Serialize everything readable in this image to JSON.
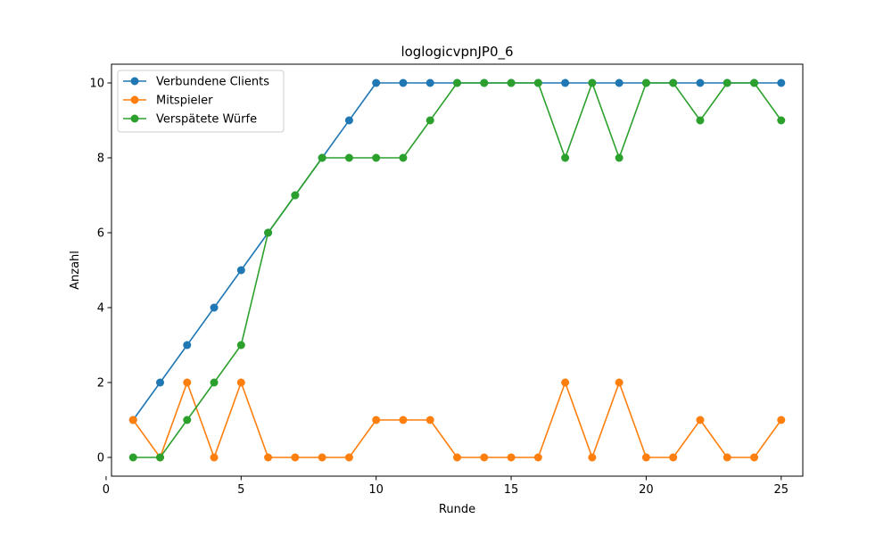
{
  "chart_data": {
    "type": "line",
    "title": "loglogicvpnJP0_6",
    "xlabel": "Runde",
    "ylabel": "Anzahl",
    "xlim": [
      0.2,
      25.8
    ],
    "ylim": [
      -0.5,
      10.5
    ],
    "xticks": [
      0,
      5,
      10,
      15,
      20,
      25
    ],
    "yticks": [
      0,
      2,
      4,
      6,
      8,
      10
    ],
    "grid": false,
    "legend_position": "top-left",
    "x": [
      1,
      2,
      3,
      4,
      5,
      6,
      7,
      8,
      9,
      10,
      11,
      12,
      13,
      14,
      15,
      16,
      17,
      18,
      19,
      20,
      21,
      22,
      23,
      24,
      25
    ],
    "series": [
      {
        "name": "Verbundene Clients",
        "color": "#1f77b4",
        "values": [
          1,
          2,
          3,
          4,
          5,
          6,
          7,
          8,
          9,
          10,
          10,
          10,
          10,
          10,
          10,
          10,
          10,
          10,
          10,
          10,
          10,
          10,
          10,
          10,
          10
        ]
      },
      {
        "name": "Mitspieler",
        "color": "#ff7f0e",
        "values": [
          1,
          0,
          2,
          0,
          2,
          0,
          0,
          0,
          0,
          1,
          1,
          1,
          0,
          0,
          0,
          0,
          2,
          0,
          2,
          0,
          0,
          1,
          0,
          0,
          1
        ]
      },
      {
        "name": "Verspätete Würfe",
        "color": "#2ca02c",
        "values": [
          0,
          0,
          1,
          2,
          3,
          6,
          7,
          8,
          8,
          8,
          8,
          9,
          10,
          10,
          10,
          10,
          8,
          10,
          8,
          10,
          10,
          9,
          10,
          10,
          9
        ]
      }
    ]
  }
}
